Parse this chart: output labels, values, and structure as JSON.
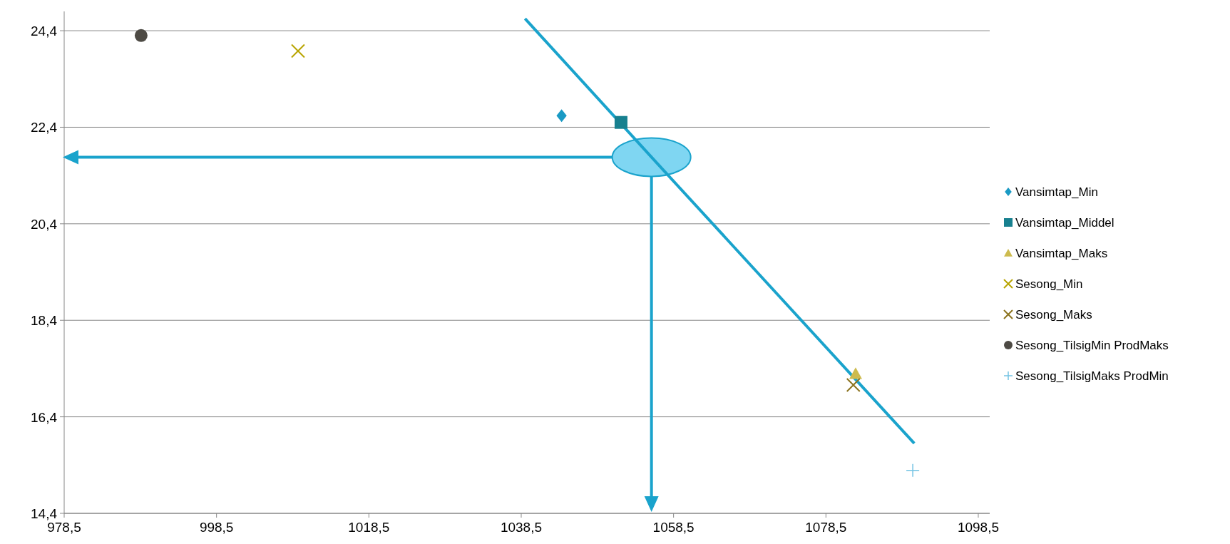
{
  "chart_data": {
    "type": "scatter",
    "xlim": [
      978.5,
      1100
    ],
    "ylim": [
      14.4,
      24.8
    ],
    "xticks": [
      {
        "value": 978.5,
        "label": "978,5"
      },
      {
        "value": 998.5,
        "label": "998,5"
      },
      {
        "value": 1018.5,
        "label": "1018,5"
      },
      {
        "value": 1038.5,
        "label": "1038,5"
      },
      {
        "value": 1058.5,
        "label": "1058,5"
      },
      {
        "value": 1078.5,
        "label": "1078,5"
      },
      {
        "value": 1098.5,
        "label": "1098,5"
      }
    ],
    "yticks": [
      {
        "value": 14.4,
        "label": "14,4"
      },
      {
        "value": 16.4,
        "label": "16,4"
      },
      {
        "value": 18.4,
        "label": "18,4"
      },
      {
        "value": 20.4,
        "label": "20,4"
      },
      {
        "value": 22.4,
        "label": "22,4"
      },
      {
        "value": 24.4,
        "label": "24,4"
      }
    ],
    "grid": "y",
    "legend": "right",
    "series": [
      {
        "name": "Vansimtap_Min",
        "color": "#1a9ac4",
        "marker": "diamond",
        "x": [
          1043.8
        ],
        "values": [
          22.64
        ]
      },
      {
        "name": "Vansimtap_Middel",
        "color": "#17808f",
        "marker": "square",
        "x": [
          1051.6
        ],
        "values": [
          22.5
        ]
      },
      {
        "name": "Vansimtap_Maks",
        "color": "#cdbb4e",
        "marker": "triangle",
        "x": [
          1082.4
        ],
        "values": [
          17.29
        ]
      },
      {
        "name": "Sesong_Min",
        "color": "#b8a400",
        "marker": "cross",
        "x": [
          1009.2
        ],
        "values": [
          23.98
        ]
      },
      {
        "name": "Sesong_Maks",
        "color": "#8c7420",
        "marker": "cross",
        "x": [
          1082.1
        ],
        "values": [
          17.06
        ]
      },
      {
        "name": "Sesong_TilsigMin ProdMaks",
        "color": "#4d4a44",
        "marker": "circle",
        "x": [
          988.6
        ],
        "values": [
          24.3
        ]
      },
      {
        "name": "Sesong_TilsigMaks ProdMin",
        "color": "#74c4e4",
        "marker": "plus",
        "x": [
          1089.9
        ],
        "values": [
          15.29
        ]
      },
      {
        "type": "line",
        "color": "#1aa3cc",
        "marker": "none",
        "x": [
          1039,
          1055.6,
          1090.1
        ],
        "values": [
          24.65,
          21.78,
          15.85
        ]
      }
    ]
  }
}
